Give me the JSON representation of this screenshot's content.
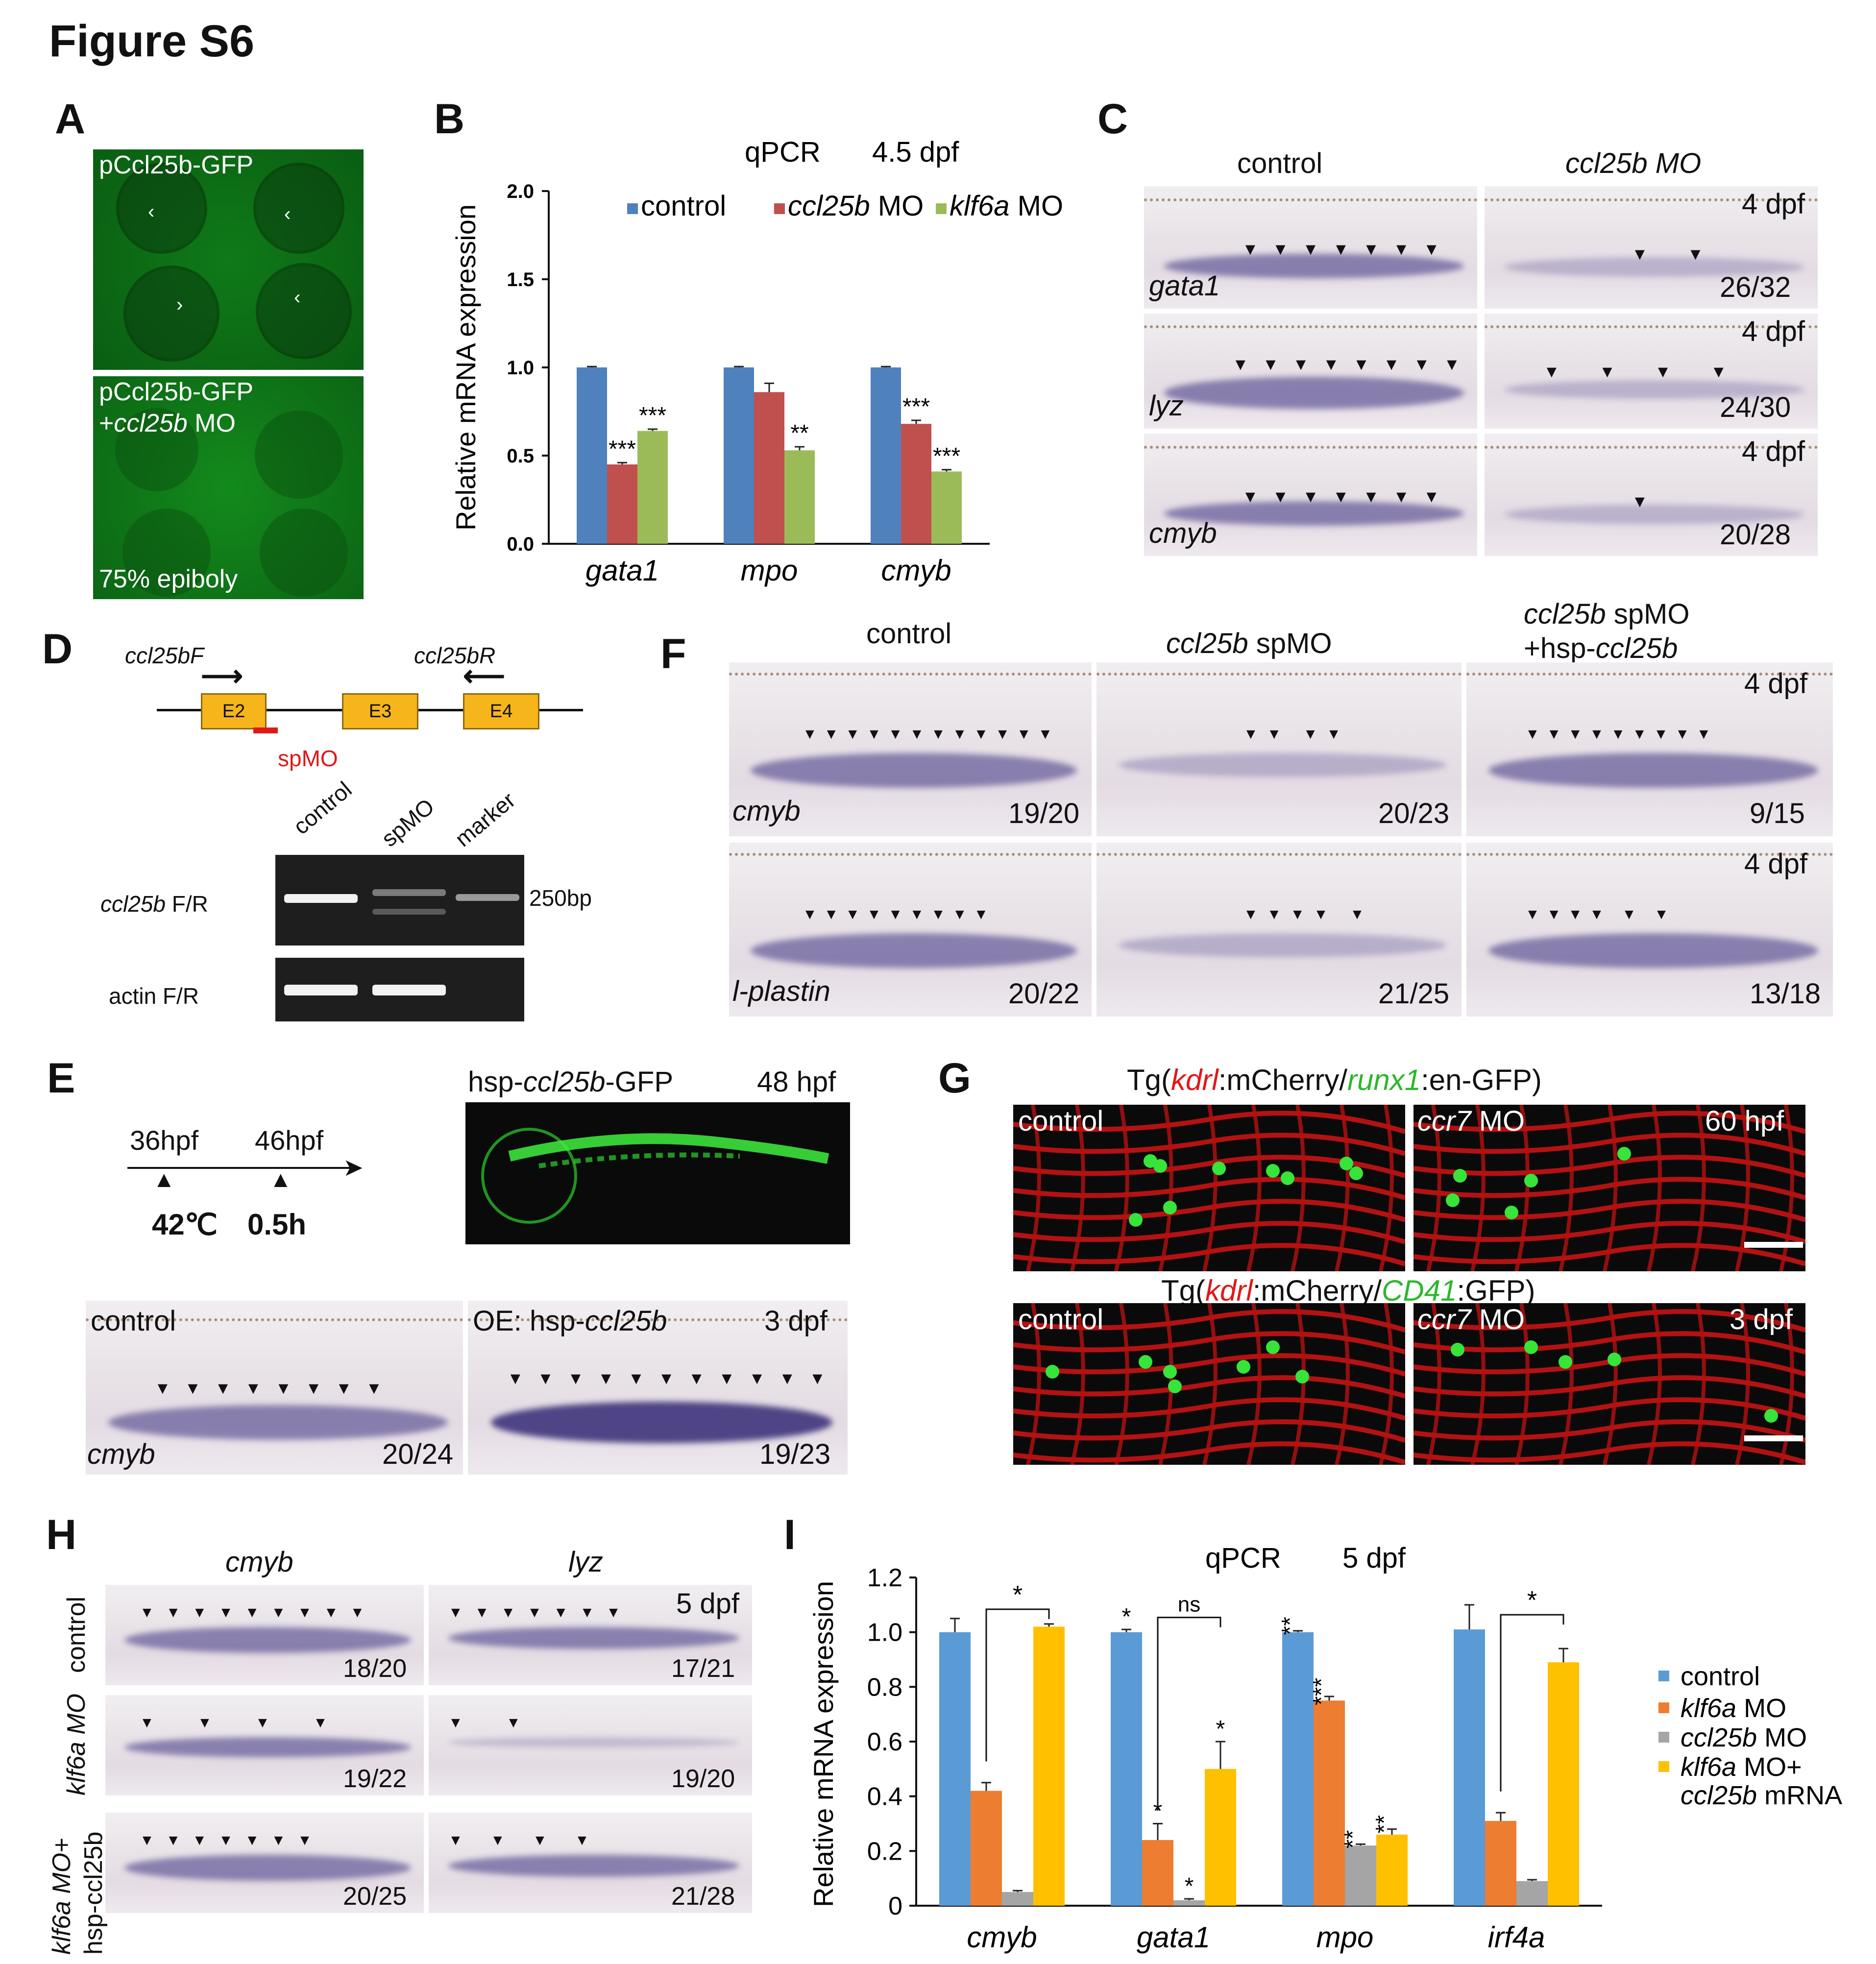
{
  "figure_title": "Figure S6",
  "panel_labels": [
    "A",
    "B",
    "C",
    "D",
    "E",
    "F",
    "G",
    "H",
    "I"
  ],
  "panelA": {
    "top_label": "pCcl25b-GFP",
    "bottom_label_1": "pCcl25b-GFP",
    "bottom_label_2_prefix": "+",
    "bottom_label_2_ital": "ccl25b",
    "bottom_label_2_suffix": " MO",
    "stage": "75% epiboly"
  },
  "panelB": {
    "title_left": "qPCR",
    "title_right": "4.5 dpf",
    "ylabel": "Relative mRNA expression",
    "yticks": [
      "0.0",
      "0.5",
      "1.0",
      "1.5",
      "2.0"
    ],
    "legend": [
      "control",
      "ccl25b MO",
      "klf6a MO"
    ],
    "chart_data": {
      "type": "bar",
      "categories": [
        "gata1",
        "mpo",
        "cmyb"
      ],
      "series": [
        {
          "name": "control",
          "values": [
            1.0,
            1.0,
            1.0
          ],
          "color": "#4f81bd"
        },
        {
          "name": "ccl25b MO",
          "values": [
            0.45,
            0.86,
            0.68
          ],
          "color": "#c0504d"
        },
        {
          "name": "klf6a MO",
          "values": [
            0.64,
            0.53,
            0.41
          ],
          "color": "#9bbb59"
        }
      ],
      "errors": [
        [
          0.005,
          0.005,
          0.005
        ],
        [
          0.01,
          0.05,
          0.02
        ],
        [
          0.01,
          0.02,
          0.01
        ]
      ],
      "significance": [
        [
          "",
          "***",
          "***"
        ],
        [
          "",
          "",
          "**"
        ],
        [
          "",
          "***",
          "***"
        ]
      ],
      "ylim": [
        0,
        2.0
      ]
    }
  },
  "panelC": {
    "col_control": "control",
    "col_mo": "ccl25b MO",
    "rows": [
      {
        "gene": "gata1",
        "stage": "4 dpf",
        "ratio": "26/32"
      },
      {
        "gene": "lyz",
        "stage": "4 dpf",
        "ratio": "24/30"
      },
      {
        "gene": "cmyb",
        "stage": "4 dpf",
        "ratio": "20/28"
      }
    ]
  },
  "panelD": {
    "primerF": "ccl25bF",
    "primerR": "ccl25bR",
    "exons": [
      "E2",
      "E3",
      "E4"
    ],
    "spmo": "spMO",
    "lanes": [
      "control",
      "spMO",
      "marker"
    ],
    "row1_ital": "ccl25b",
    "row1_suffix": " F/R",
    "row2": "actin F/R",
    "size": "250bp"
  },
  "panelE": {
    "t1": "36hpf",
    "t2": "46hpf",
    "temp": "42℃",
    "dur": "0.5h",
    "fl_prefix": "hsp-",
    "fl_ital": "ccl25b",
    "fl_suffix": "-GFP",
    "fl_stage": "48 hpf",
    "control": "control",
    "oe": "OE: hsp-",
    "oe_ital": "ccl25b",
    "stage": "3 dpf",
    "gene": "cmyb",
    "ratio_control": "20/24",
    "ratio_oe": "19/23"
  },
  "panelF": {
    "col1": "control",
    "col2_ital": "ccl25b",
    "col2_suffix": " spMO",
    "col3_ital": "ccl25b",
    "col3_suffix": " spMO",
    "col3_line2": "+hsp-",
    "col3_line2_ital": "ccl25b",
    "rows": [
      {
        "gene": "cmyb",
        "stage": "4 dpf",
        "ratios": [
          "19/20",
          "20/23",
          "9/15"
        ]
      },
      {
        "gene": "l-plastin",
        "stage": "4 dpf",
        "ratios": [
          "20/22",
          "21/25",
          "13/18"
        ]
      }
    ]
  },
  "panelG": {
    "title1": [
      "Tg(",
      "kdrl",
      ":mCherry/",
      "runx1",
      ":en-GFP)"
    ],
    "title2": [
      "Tg(",
      "kdrl",
      ":mCherry/",
      "CD41",
      ":GFP)"
    ],
    "control": "control",
    "mo_ital": "ccr7",
    "mo_suffix": " MO",
    "stage1": "60 hpf",
    "stage2": "3 dpf"
  },
  "panelH": {
    "col1": "cmyb",
    "col2": "lyz",
    "stage": "5 dpf",
    "row_labels": [
      "control",
      "klf6a MO",
      "klf6a MO+",
      "hsp-ccl25b"
    ],
    "ratios": [
      [
        "18/20",
        "17/21"
      ],
      [
        "19/22",
        "19/20"
      ],
      [
        "20/25",
        "21/28"
      ]
    ]
  },
  "panelI": {
    "title_left": "qPCR",
    "title_right": "5 dpf",
    "ylabel": "Relative mRNA expression",
    "yticks": [
      "0",
      "0.2",
      "0.4",
      "0.6",
      "0.8",
      "1.0",
      "1.2"
    ],
    "legend": [
      "control",
      "klf6a MO",
      "ccl25b MO",
      "klf6a MO+",
      "ccl25b mRNA"
    ],
    "chart_data": {
      "type": "bar",
      "categories": [
        "cmyb",
        "gata1",
        "mpo",
        "irf4a"
      ],
      "series": [
        {
          "name": "control",
          "values": [
            1.0,
            1.0,
            1.0,
            1.01
          ],
          "color": "#5b9bd5"
        },
        {
          "name": "klf6a MO",
          "values": [
            0.42,
            0.24,
            0.75,
            0.31
          ],
          "color": "#ed7d31"
        },
        {
          "name": "ccl25b MO",
          "values": [
            0.05,
            0.02,
            0.22,
            0.09
          ],
          "color": "#a5a5a5"
        },
        {
          "name": "klf6a MO+ ccl25b mRNA",
          "values": [
            1.02,
            0.5,
            0.26,
            0.89
          ],
          "color": "#ffc000"
        }
      ],
      "errors": [
        [
          0.05,
          0.01,
          0.005,
          0.09
        ],
        [
          0.03,
          0.06,
          0.015,
          0.03
        ],
        [
          0.005,
          0.005,
          0.005,
          0.005
        ],
        [
          0.01,
          0.1,
          0.02,
          0.05
        ]
      ],
      "significance": [
        [
          "",
          "*",
          "**",
          ""
        ],
        [
          "",
          "*",
          "***",
          ""
        ],
        [
          "",
          "*",
          "**",
          ""
        ],
        [
          "",
          "*",
          "**",
          ""
        ]
      ],
      "brackets": [
        "*",
        "ns",
        "",
        "*"
      ],
      "ylim": [
        0,
        1.2
      ]
    }
  }
}
